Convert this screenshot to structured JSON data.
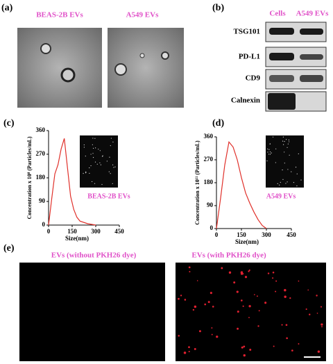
{
  "panels": {
    "a": {
      "label": "(a)",
      "titles": [
        "BEAS-2B EVs",
        "A549 EVs"
      ]
    },
    "b": {
      "label": "(b)",
      "columns": [
        "Cells",
        "A549 EVs"
      ],
      "rows": [
        "TSG101",
        "PD-L1",
        "CD9",
        "Calnexin"
      ]
    },
    "c": {
      "label": "(c)"
    },
    "d": {
      "label": "(d)"
    },
    "e": {
      "label": "(e)",
      "titles": [
        "EVs (without PKH26 dye)",
        "EVs (with PKH26 dye)"
      ]
    }
  },
  "chart_data": [
    {
      "type": "line",
      "ylabel": "Concentration x 10⁸ (Particles/mL)",
      "xlabel": "Size(nm)",
      "x": [
        0,
        20,
        40,
        60,
        80,
        100,
        120,
        140,
        160,
        180,
        200,
        250,
        300
      ],
      "series": [
        {
          "name": "BEAS-2B EVs",
          "color": "#e0302a",
          "values": [
            0,
            100,
            195,
            230,
            290,
            330,
            220,
            110,
            60,
            30,
            15,
            5,
            0
          ]
        }
      ],
      "xlim": [
        0,
        450
      ],
      "ylim": [
        0,
        360
      ],
      "xticks": [
        0,
        150,
        300,
        450
      ],
      "yticks": [
        0,
        90,
        180,
        270,
        360
      ]
    },
    {
      "type": "line",
      "ylabel": "Concentration x 10¹¹ (Particles/mL)",
      "xlabel": "Size(nm)",
      "x": [
        0,
        25,
        50,
        75,
        100,
        125,
        150,
        175,
        200,
        225,
        250,
        275,
        300
      ],
      "series": [
        {
          "name": "A549 EVs",
          "color": "#e0302a",
          "values": [
            0,
            120,
            250,
            340,
            320,
            270,
            200,
            140,
            100,
            65,
            35,
            12,
            0
          ]
        }
      ],
      "xlim": [
        0,
        450
      ],
      "ylim": [
        0,
        360
      ],
      "xticks": [
        0,
        150,
        300,
        450
      ],
      "yticks": [
        0,
        90,
        180,
        270,
        360
      ]
    }
  ]
}
